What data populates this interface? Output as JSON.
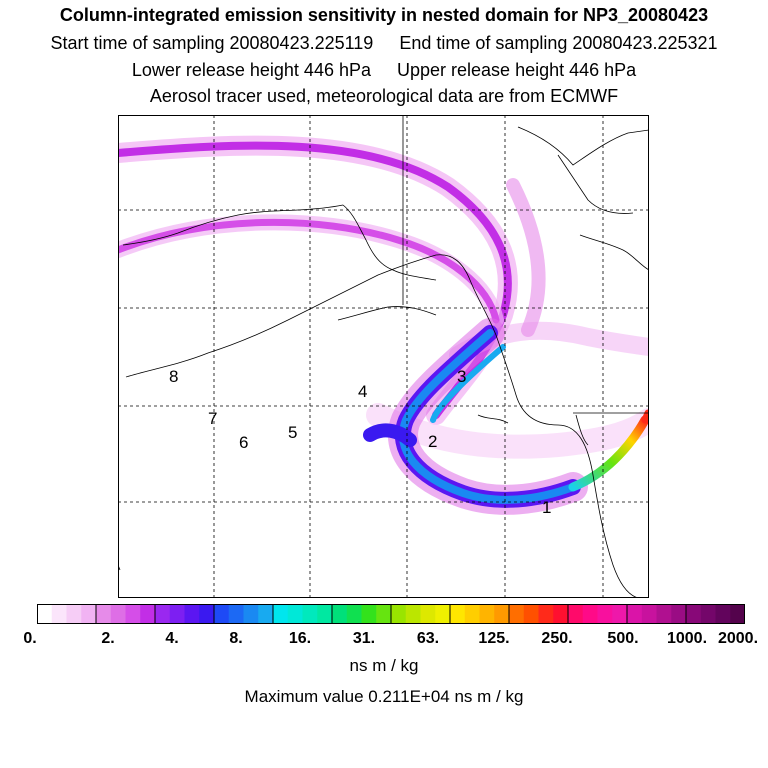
{
  "header": {
    "title": "Column-integrated emission sensitivity in nested domain for NP3_20080423",
    "start_label": "Start time of sampling 20080423.225119",
    "end_label": "End time of sampling 20080423.225321",
    "lower_label": "Lower release height  446 hPa",
    "upper_label": "Upper release height  446 hPa",
    "tracer_line": "Aerosol tracer used, meteorological data are from ECMWF"
  },
  "map": {
    "point_labels": [
      {
        "label": "1"
      },
      {
        "label": "2"
      },
      {
        "label": "3"
      },
      {
        "label": "4"
      },
      {
        "label": "5"
      },
      {
        "label": "6"
      },
      {
        "label": "7"
      },
      {
        "label": "8"
      }
    ]
  },
  "colorbar": {
    "tick_labels": [
      "0.",
      "2.",
      "4.",
      "8.",
      "16.",
      "31.",
      "63.",
      "125.",
      "250.",
      "500.",
      "1000.",
      "2000."
    ],
    "colors": [
      "#ffffff",
      "#fbe5fb",
      "#f6cdf6",
      "#f1b3f3",
      "#e68be9",
      "#de6ee6",
      "#d54ee8",
      "#c22ee6",
      "#9a28f0",
      "#7d1ff2",
      "#5b16f2",
      "#3a19f0",
      "#1e4af6",
      "#1c69f4",
      "#1a89f2",
      "#18aaf0",
      "#00e6ee",
      "#00e8d8",
      "#00e9bd",
      "#00e8a1",
      "#00e07a",
      "#10e050",
      "#33e21c",
      "#66e410",
      "#99e400",
      "#bbe600",
      "#dde800",
      "#eff000",
      "#ffe600",
      "#ffce00",
      "#ffb400",
      "#ff9a00",
      "#ff6e00",
      "#ff5000",
      "#ff2a1a",
      "#ff1030",
      "#ff0a6a",
      "#ff0a88",
      "#f8109e",
      "#ee18aa",
      "#da14a8",
      "#c8129e",
      "#b01090",
      "#9a0c84",
      "#880878",
      "#74066a",
      "#62045c",
      "#54034c"
    ],
    "units": "ns m / kg",
    "max_text": "Maximum value  0.211E+04 ns m / kg"
  }
}
